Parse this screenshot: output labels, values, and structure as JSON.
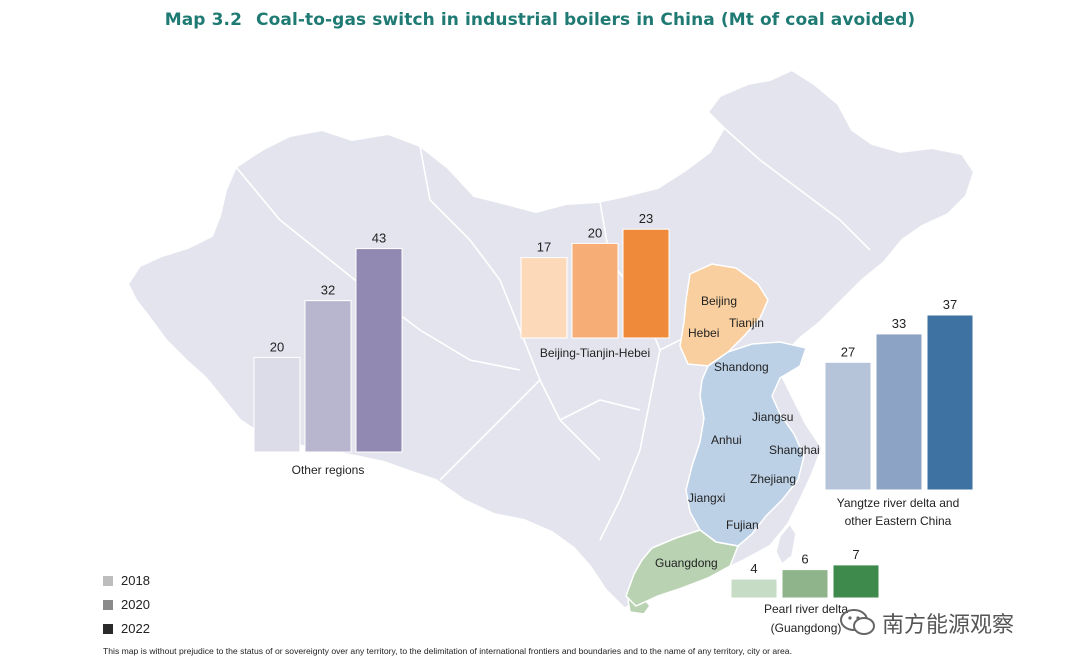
{
  "title": {
    "map_number": "Map 3.2",
    "text": "Coal-to-gas switch in industrial boilers in China (Mt of coal avoided)"
  },
  "colors": {
    "land": "#e4e4ee",
    "border": "#ffffff",
    "jjj_region": "#f9cf9f",
    "eastern_region": "#bcd0e6",
    "guangdong_region": "#b9d3b2",
    "legend_2018": "#bdbdbd",
    "legend_2020": "#8a8a8a",
    "legend_2022": "#2a2a2a"
  },
  "legend": [
    {
      "label": "2018",
      "color": "#bdbdbd"
    },
    {
      "label": "2020",
      "color": "#8a8a8a"
    },
    {
      "label": "2022",
      "color": "#2a2a2a"
    }
  ],
  "provinces": {
    "beijing": "Beijing",
    "tianjin": "Tianjin",
    "hebei": "Hebei",
    "shandong": "Shandong",
    "jiangsu": "Jiangsu",
    "anhui": "Anhui",
    "shanghai": "Shanghai",
    "zhejiang": "Zhejiang",
    "jiangxi": "Jiangxi",
    "fujian": "Fujian",
    "guangdong": "Guangdong"
  },
  "chart_data": [
    {
      "type": "bar",
      "name": "Other regions",
      "categories": [
        "2018",
        "2020",
        "2022"
      ],
      "values": [
        20,
        32,
        43
      ],
      "colors": [
        "#dcdce8",
        "#b8b6cf",
        "#9189b2"
      ]
    },
    {
      "type": "bar",
      "name": "Beijing-Tianjin-Hebei",
      "categories": [
        "2018",
        "2020",
        "2022"
      ],
      "values": [
        17,
        20,
        23
      ],
      "colors": [
        "#fcd9b8",
        "#f6ad76",
        "#ef8a3a"
      ]
    },
    {
      "type": "bar",
      "name": "Yangtze river delta and other Eastern China",
      "categories": [
        "2018",
        "2020",
        "2022"
      ],
      "values": [
        27,
        33,
        37
      ],
      "colors": [
        "#b6c4da",
        "#8ca3c5",
        "#3e72a3"
      ]
    },
    {
      "type": "bar",
      "name": "Pearl river delta (Guangdong)",
      "categories": [
        "2018",
        "2020",
        "2022"
      ],
      "values": [
        4,
        6,
        7
      ],
      "colors": [
        "#c7dcc5",
        "#8fb38b",
        "#3e8a4c"
      ]
    }
  ],
  "region_labels": {
    "other": "Other regions",
    "jjj": "Beijing-Tianjin-Hebei",
    "yangtze_line1": "Yangtze river delta and",
    "yangtze_line2": "other Eastern China",
    "pearl_line1": "Pearl river delta",
    "pearl_line2": "(Guangdong)"
  },
  "footnote": "This map is without prejudice to the status of or sovereignty over any territory, to the delimitation of international frontiers and boundaries and to the name of any territory, city or area.",
  "watermark": "南方能源观察"
}
